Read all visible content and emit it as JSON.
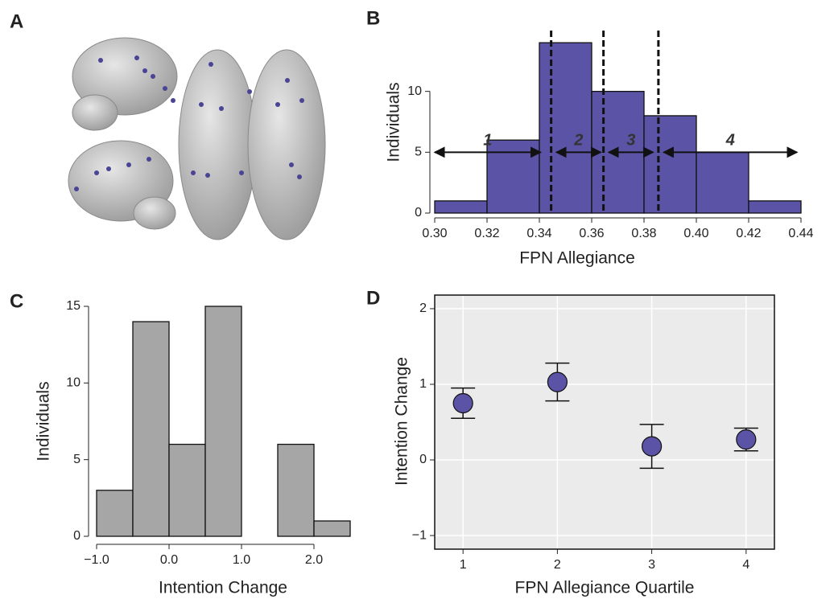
{
  "figure_labels": [
    "A",
    "B",
    "C",
    "D"
  ],
  "chart_data": [
    {
      "type": "histogram",
      "bins": [
        0.3,
        0.32,
        0.34,
        0.36,
        0.38,
        0.4,
        0.42,
        0.44
      ],
      "values": [
        1,
        6,
        14,
        10,
        8,
        5,
        1
      ],
      "color": "#5b54a6",
      "xlabel": "FPN Allegiance",
      "ylabel": "Individuals",
      "xlim": [
        0.3,
        0.44
      ],
      "ylim": [
        0,
        15
      ],
      "xticks": [
        {
          "value": 0.3,
          "label": "0.30"
        },
        {
          "value": 0.32,
          "label": "0.32"
        },
        {
          "value": 0.34,
          "label": "0.34"
        },
        {
          "value": 0.36,
          "label": "0.36"
        },
        {
          "value": 0.38,
          "label": "0.38"
        },
        {
          "value": 0.4,
          "label": "0.40"
        },
        {
          "value": 0.42,
          "label": "0.42"
        },
        {
          "value": 0.44,
          "label": "0.44"
        }
      ],
      "yticks": [
        0,
        5,
        10
      ],
      "vlines": [
        0.3445,
        0.3645,
        0.3855
      ],
      "arrows": [
        {
          "label": "1",
          "from": 0.3,
          "to": 0.3405,
          "y": 5
        },
        {
          "label": "2",
          "from": 0.3465,
          "to": 0.3635,
          "y": 5
        },
        {
          "label": "3",
          "from": 0.3665,
          "to": 0.3835,
          "y": 5
        },
        {
          "label": "4",
          "from": 0.3875,
          "to": 0.4385,
          "y": 5
        }
      ]
    },
    {
      "type": "histogram",
      "bins": [
        -1.0,
        -0.5,
        0.0,
        0.5,
        1.0,
        1.5,
        2.0,
        2.5
      ],
      "values": [
        3,
        14,
        6,
        15,
        0,
        6,
        1
      ],
      "color": "#a6a6a6",
      "xlabel": "Intention Change",
      "ylabel": "Individuals",
      "xlim": [
        -1.0,
        2.5
      ],
      "ylim": [
        0,
        15
      ],
      "xticks": [
        {
          "value": -1.0,
          "label": "−1.0"
        },
        {
          "value": 0.0,
          "label": "0.0"
        },
        {
          "value": 1.0,
          "label": "1.0"
        },
        {
          "value": 2.0,
          "label": "2.0"
        }
      ],
      "yticks": [
        0,
        5,
        10,
        15
      ]
    },
    {
      "type": "errorbar",
      "x": [
        1,
        2,
        3,
        4
      ],
      "values": [
        0.75,
        1.03,
        0.18,
        0.27
      ],
      "errors": [
        0.2,
        0.25,
        0.29,
        0.15
      ],
      "color": "#5b54a6",
      "xlabel": "FPN Allegiance Quartile",
      "ylabel": "Intention Change",
      "xlim": [
        0.7,
        4.3
      ],
      "ylim": [
        -1.18,
        2.18
      ],
      "xticks": [
        1,
        2,
        3,
        4
      ],
      "yticks": [
        {
          "value": -1,
          "label": "−1"
        },
        0,
        1,
        2
      ],
      "grid": true
    }
  ]
}
